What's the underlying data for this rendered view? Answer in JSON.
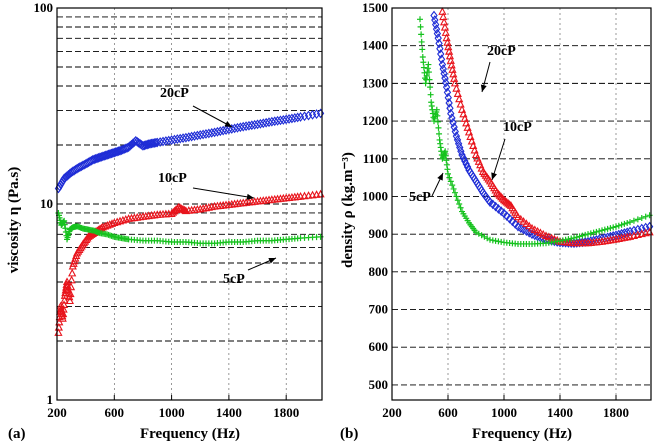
{
  "chart_data": [
    {
      "type": "scatter",
      "panel_label": "(a)",
      "xlabel": "Frequency (Hz)",
      "ylabel": "viscosity η (Pa.s)",
      "yscale": "log",
      "xlim": [
        200,
        2050
      ],
      "ylim": [
        1,
        100
      ],
      "x_ticks": [
        200,
        600,
        1000,
        1400,
        1800
      ],
      "y_ticks": [
        1,
        10,
        100
      ],
      "grid": true,
      "annotations": [
        {
          "text": "20cP",
          "target": "20cP"
        },
        {
          "text": "10cP",
          "target": "10cP"
        },
        {
          "text": "5cP",
          "target": "5cP"
        }
      ],
      "series": [
        {
          "name": "20cP",
          "color": "#1f2dd6",
          "marker": "diamond",
          "x": [
            210,
            250,
            300,
            350,
            400,
            450,
            500,
            550,
            600,
            650,
            700,
            750,
            800,
            850,
            900,
            1000,
            1100,
            1200,
            1300,
            1400,
            1500,
            1600,
            1700,
            1800,
            1900,
            2040
          ],
          "y": [
            12,
            13.5,
            14.5,
            15.3,
            16,
            16.8,
            17.3,
            17.8,
            18.3,
            18.8,
            19.5,
            21,
            19.8,
            20.3,
            20.6,
            21.2,
            21.8,
            22.5,
            23.2,
            24,
            24.8,
            25.5,
            26.3,
            27,
            27.8,
            29
          ]
        },
        {
          "name": "10cP",
          "color": "#e8141c",
          "marker": "triangle",
          "x": [
            210,
            225,
            240,
            255,
            270,
            290,
            310,
            340,
            380,
            420,
            470,
            520,
            600,
            700,
            800,
            900,
            1000,
            1050,
            1100,
            1200,
            1300,
            1400,
            1500,
            1600,
            1700,
            1800,
            1900,
            2040
          ],
          "y": [
            2.2,
            3.0,
            2.6,
            3.4,
            4.0,
            3.2,
            4.8,
            5.6,
            6.2,
            6.8,
            7.2,
            7.6,
            8.0,
            8.4,
            8.6,
            8.8,
            8.9,
            9.6,
            9.2,
            9.4,
            9.7,
            9.9,
            10.1,
            10.3,
            10.5,
            10.7,
            10.9,
            11.2
          ]
        },
        {
          "name": "5cP",
          "color": "#16c21e",
          "marker": "plus",
          "x": [
            210,
            230,
            250,
            270,
            290,
            310,
            340,
            380,
            420,
            460,
            500,
            550,
            600,
            650,
            700,
            800,
            900,
            1000,
            1100,
            1200,
            1300,
            1400,
            1500,
            1600,
            1700,
            1800,
            1900,
            2040
          ],
          "y": [
            9.0,
            7.8,
            8.2,
            6.6,
            7.4,
            7.6,
            7.7,
            7.5,
            7.4,
            7.3,
            7.1,
            7.0,
            6.8,
            6.7,
            6.6,
            6.5,
            6.5,
            6.4,
            6.4,
            6.3,
            6.3,
            6.4,
            6.4,
            6.5,
            6.5,
            6.6,
            6.7,
            6.8
          ]
        }
      ]
    },
    {
      "type": "scatter",
      "panel_label": "(b)",
      "xlabel": "Frequency (Hz)",
      "ylabel": "density ρ (kg.m⁻³)",
      "xlim": [
        200,
        2050
      ],
      "ylim": [
        460,
        1500
      ],
      "x_ticks": [
        200,
        600,
        1000,
        1400,
        1800
      ],
      "y_ticks": [
        500,
        600,
        700,
        800,
        900,
        1000,
        1100,
        1200,
        1300,
        1400,
        1500
      ],
      "grid": true,
      "annotations": [
        {
          "text": "20cP",
          "target": "20cP"
        },
        {
          "text": "10cP",
          "target": "10cP"
        },
        {
          "text": "5cP",
          "target": "5cP"
        }
      ],
      "series": [
        {
          "name": "20cP",
          "color": "#1f2dd6",
          "marker": "diamond",
          "x": [
            500,
            530,
            560,
            590,
            620,
            660,
            700,
            750,
            800,
            850,
            900,
            1000,
            1100,
            1200,
            1300,
            1400,
            1500,
            1600,
            1700,
            1800,
            1900,
            2040
          ],
          "y": [
            1480,
            1420,
            1350,
            1290,
            1220,
            1160,
            1110,
            1070,
            1040,
            1010,
            985,
            955,
            920,
            900,
            885,
            878,
            876,
            880,
            888,
            897,
            907,
            920
          ]
        },
        {
          "name": "10cP",
          "color": "#e8141c",
          "marker": "triangle",
          "x": [
            560,
            590,
            620,
            650,
            700,
            750,
            800,
            850,
            900,
            950,
            1000,
            1050,
            1100,
            1200,
            1300,
            1400,
            1500,
            1600,
            1700,
            1800,
            1900,
            2040
          ],
          "y": [
            1490,
            1420,
            1360,
            1300,
            1230,
            1170,
            1110,
            1065,
            1040,
            1010,
            990,
            975,
            945,
            915,
            895,
            880,
            876,
            876,
            880,
            886,
            893,
            905
          ]
        },
        {
          "name": "5cP",
          "color": "#16c21e",
          "marker": "plus",
          "x": [
            400,
            420,
            440,
            460,
            480,
            500,
            520,
            540,
            560,
            580,
            600,
            650,
            700,
            750,
            800,
            900,
            1000,
            1100,
            1200,
            1300,
            1400,
            1500,
            1600,
            1700,
            1800,
            1900,
            2040
          ],
          "y": [
            1470,
            1370,
            1300,
            1350,
            1250,
            1200,
            1230,
            1150,
            1100,
            1120,
            1060,
            1010,
            960,
            930,
            905,
            885,
            878,
            874,
            874,
            876,
            882,
            890,
            900,
            910,
            920,
            932,
            950
          ]
        }
      ]
    }
  ]
}
